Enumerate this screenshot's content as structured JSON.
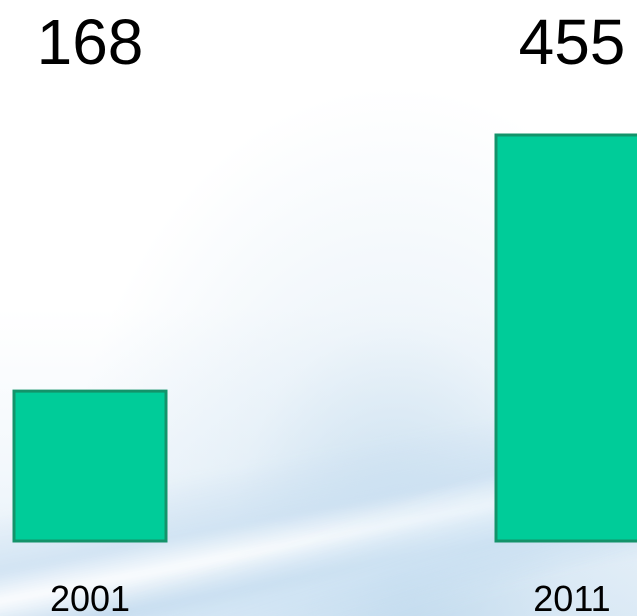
{
  "chart_data": {
    "type": "bar",
    "categories": [
      "2001",
      "2011"
    ],
    "values": [
      168,
      455
    ],
    "title": "",
    "xlabel": "",
    "ylabel": "",
    "ylim": [
      0,
      455
    ],
    "grid": false,
    "bar_color": "#00CC99",
    "bar_border_color": "#13936A"
  }
}
